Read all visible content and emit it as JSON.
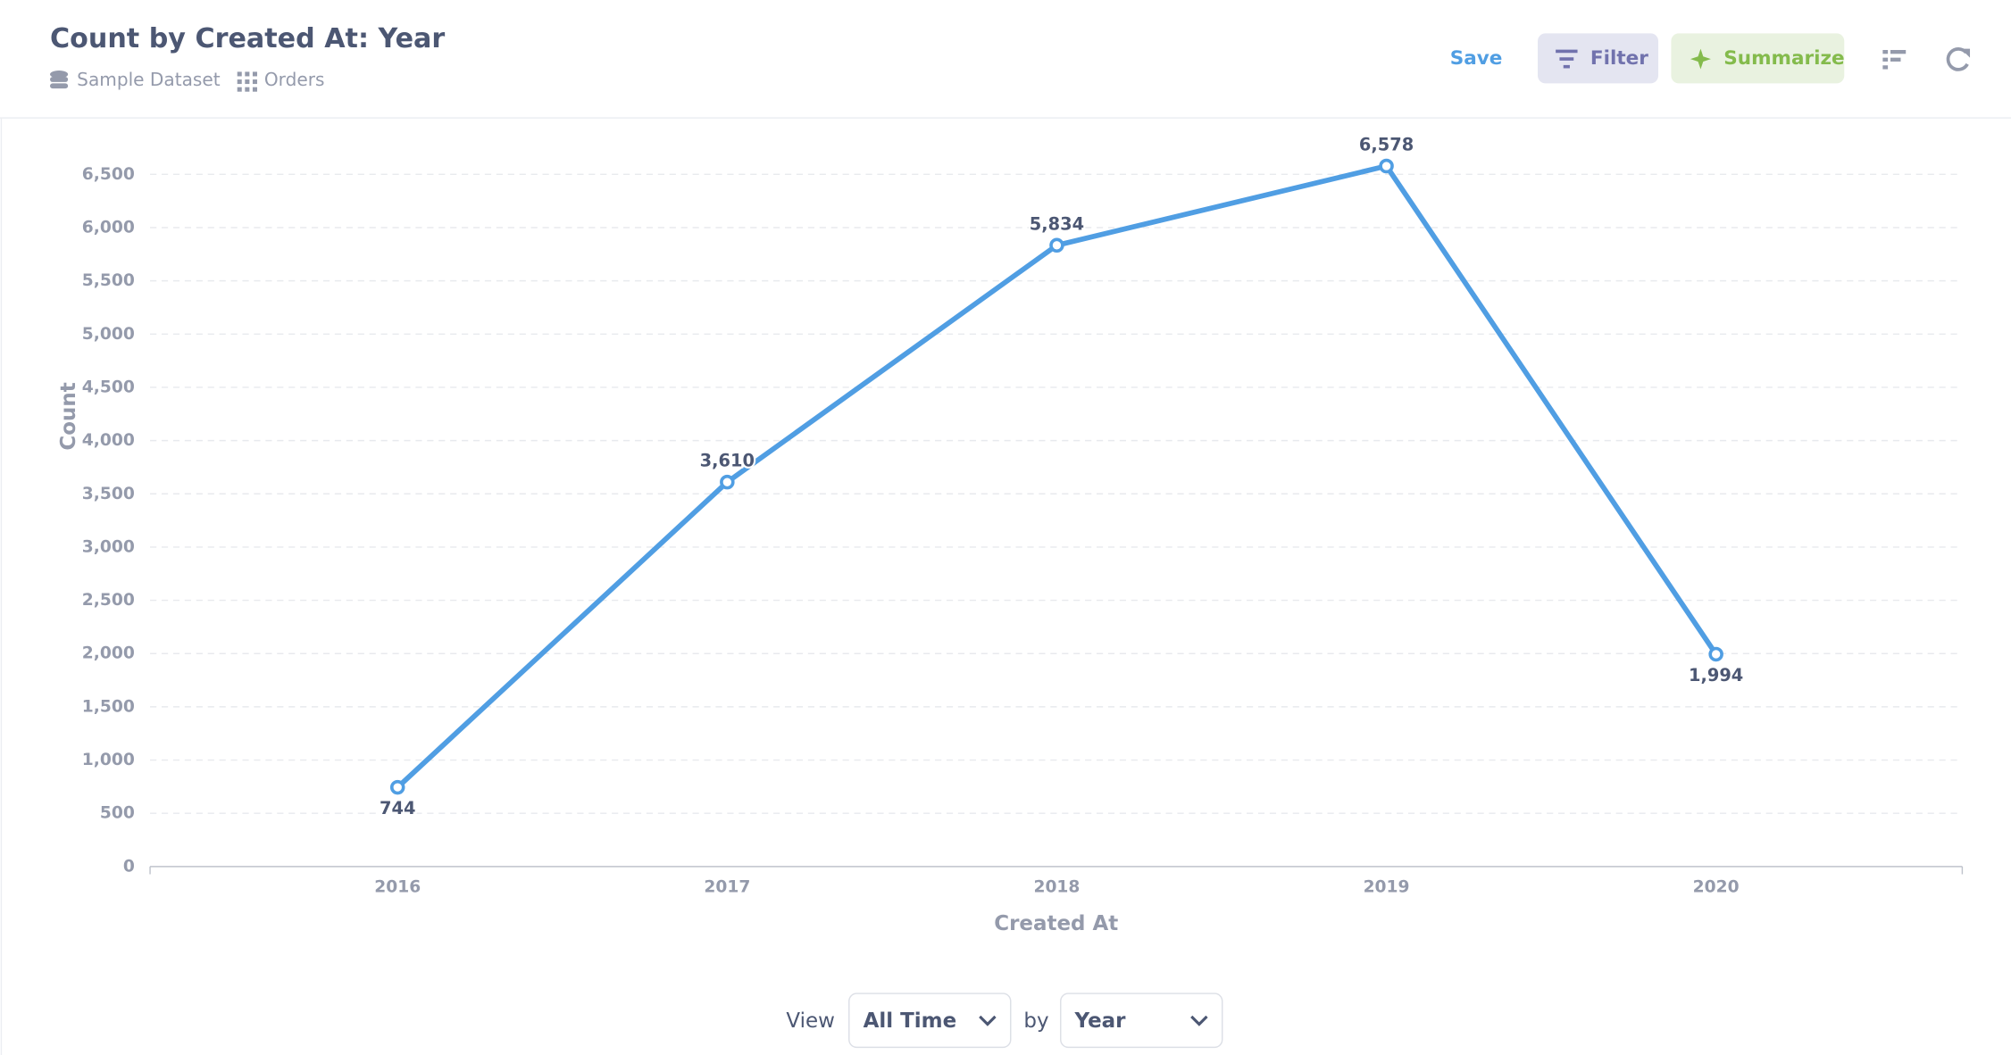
{
  "header": {
    "title": "Count by Created At: Year",
    "database": "Sample Dataset",
    "table": "Orders",
    "save": "Save",
    "filter": "Filter",
    "summarize": "Summarize"
  },
  "chart_data": {
    "type": "line",
    "x_label": "Created At",
    "y_label": "Count",
    "categories": [
      "2016",
      "2017",
      "2018",
      "2019",
      "2020"
    ],
    "series": [
      {
        "name": "Count",
        "color": "#509ee3",
        "values": [
          744,
          3610,
          5834,
          6578,
          1994
        ],
        "value_labels": [
          "744",
          "3,610",
          "5,834",
          "6,578",
          "1,994"
        ]
      }
    ],
    "ylim": [
      0,
      6500
    ],
    "yticks": [
      0,
      500,
      {
        "value": 1000,
        "label": "1,000"
      },
      {
        "value": 1500,
        "label": "1,500"
      },
      {
        "value": 2000,
        "label": "2,000"
      },
      {
        "value": 2500,
        "label": "2,500"
      },
      {
        "value": 3000,
        "label": "3,000"
      },
      {
        "value": 3500,
        "label": "3,500"
      },
      {
        "value": 4000,
        "label": "4,000"
      },
      {
        "value": 4500,
        "label": "4,500"
      },
      {
        "value": 5000,
        "label": "5,000"
      },
      {
        "value": 5500,
        "label": "5,500"
      },
      {
        "value": 6000,
        "label": "6,000"
      },
      {
        "value": 6500,
        "label": "6,500"
      }
    ],
    "grid": true
  },
  "footer": {
    "view": "View",
    "period": "All Time",
    "by": "by",
    "unit": "Year"
  }
}
